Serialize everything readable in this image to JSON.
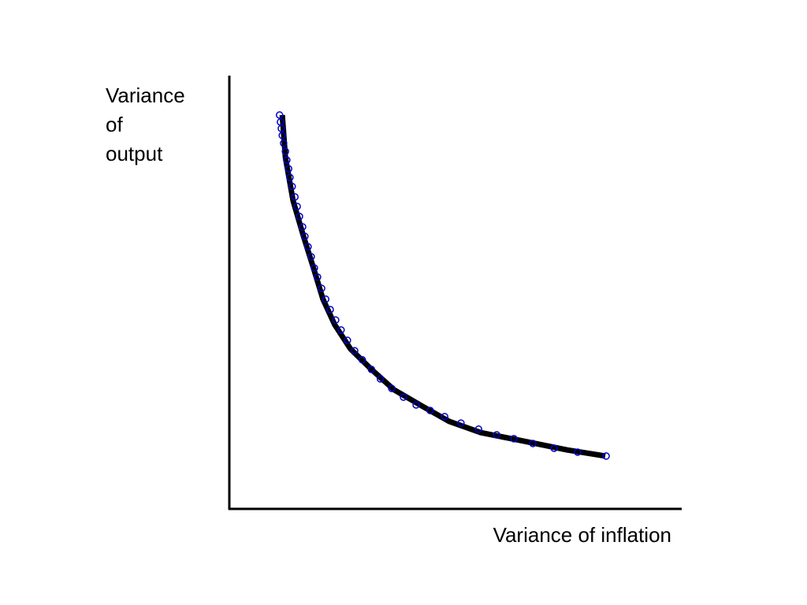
{
  "chart_data": {
    "type": "line",
    "ylabel": [
      "Variance",
      "of",
      "output"
    ],
    "xlabel": "Variance of inflation",
    "xlim": [
      0,
      100
    ],
    "ylim": [
      0,
      100
    ],
    "series": [
      {
        "style": "markers",
        "color": "#0000cc",
        "x": [
          11.1,
          11.3,
          11.5,
          11.7,
          12.0,
          12.4,
          12.7,
          13.1,
          13.4,
          13.9,
          14.5,
          15.0,
          15.5,
          16.2,
          16.7,
          17.4,
          18.1,
          18.8,
          19.5,
          20.4,
          21.3,
          22.3,
          23.5,
          24.7,
          26.1,
          27.7,
          29.4,
          31.4,
          33.4,
          35.9,
          38.5,
          41.3,
          44.4,
          47.6,
          51.2,
          55.1,
          59.1,
          62.9,
          67.1,
          71.8,
          77.0,
          83.3
        ],
        "values": [
          90.9,
          89.3,
          87.8,
          86.2,
          84.4,
          82.5,
          80.5,
          78.5,
          76.5,
          74.4,
          72.0,
          69.8,
          67.5,
          65.1,
          62.9,
          60.5,
          58.2,
          55.6,
          53.5,
          50.9,
          48.4,
          46.0,
          43.6,
          41.3,
          38.9,
          36.5,
          34.4,
          32.2,
          30.0,
          27.8,
          25.8,
          24.0,
          22.7,
          21.3,
          19.8,
          18.4,
          17.1,
          16.2,
          15.1,
          14.0,
          13.1,
          12.2
        ]
      },
      {
        "style": "line",
        "color": "#000000",
        "x": [
          11.7,
          12.4,
          14.1,
          16.4,
          18.6,
          20.7,
          23.3,
          26.8,
          31.2,
          36.4,
          42.5,
          48.6,
          55.6,
          64.3,
          74.7,
          83.1
        ],
        "values": [
          90.9,
          81.1,
          71.1,
          62.9,
          55.6,
          48.4,
          42.5,
          36.9,
          32.4,
          27.5,
          23.8,
          20.2,
          17.6,
          15.8,
          13.6,
          12.2
        ]
      }
    ]
  }
}
